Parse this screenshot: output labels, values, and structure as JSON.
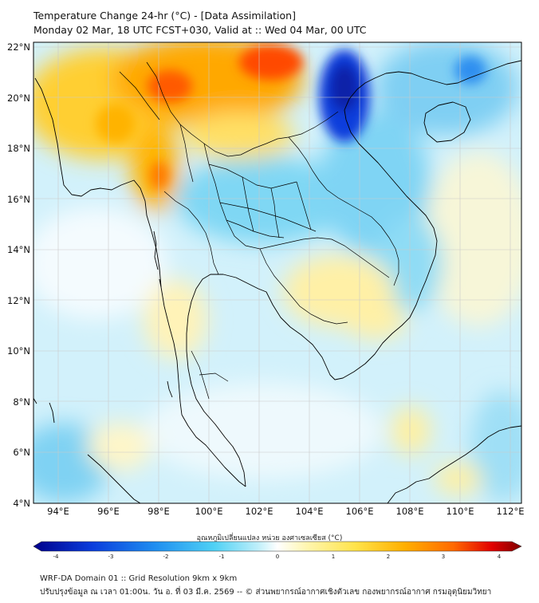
{
  "title_line1": "Temperature Change 24-hr (°C) - [Data Assimilation]",
  "title_line2": "Monday 02 Mar, 18 UTC FCST+030, Valid at :: Wed 04 Mar, 00 UTC",
  "map": {
    "lon_range": [
      93,
      112.5
    ],
    "lat_range": [
      4,
      22.2
    ],
    "lat_ticks": [
      "22°N",
      "20°N",
      "18°N",
      "16°N",
      "14°N",
      "12°N",
      "10°N",
      "8°N",
      "6°N",
      "4°N"
    ],
    "lon_ticks": [
      "94°E",
      "96°E",
      "98°E",
      "100°E",
      "102°E",
      "104°E",
      "106°E",
      "108°E",
      "110°E",
      "112°E"
    ]
  },
  "colorbar": {
    "label": "อุณหภูมิเปลี่ยนแปลง หน่วย องศาเซลเซียส (°C)",
    "ticks": [
      "-4",
      "-3",
      "-2",
      "-1",
      "0",
      "1",
      "2",
      "3",
      "4"
    ],
    "colors": [
      "#00008b",
      "#0a3ddc",
      "#1f8ff0",
      "#4fd1f5",
      "#bfeffa",
      "#ffffff",
      "#fff6b0",
      "#ffe34a",
      "#ffb000",
      "#ff6a00",
      "#e10000",
      "#7f0000"
    ]
  },
  "footer_line1": "WRF-DA Domain 01 :: Grid Resolution 9km x 9km",
  "footer_line2": "ปรับปรุงข้อมูล ณ เวลา 01:00น. วัน อ. ที่ 03 มี.ค. 2569 -- © ส่วนพยากรณ์อากาศเชิงตัวเลข กองพยากรณ์อากาศ กรมอุตุนิยมวิทยา"
}
